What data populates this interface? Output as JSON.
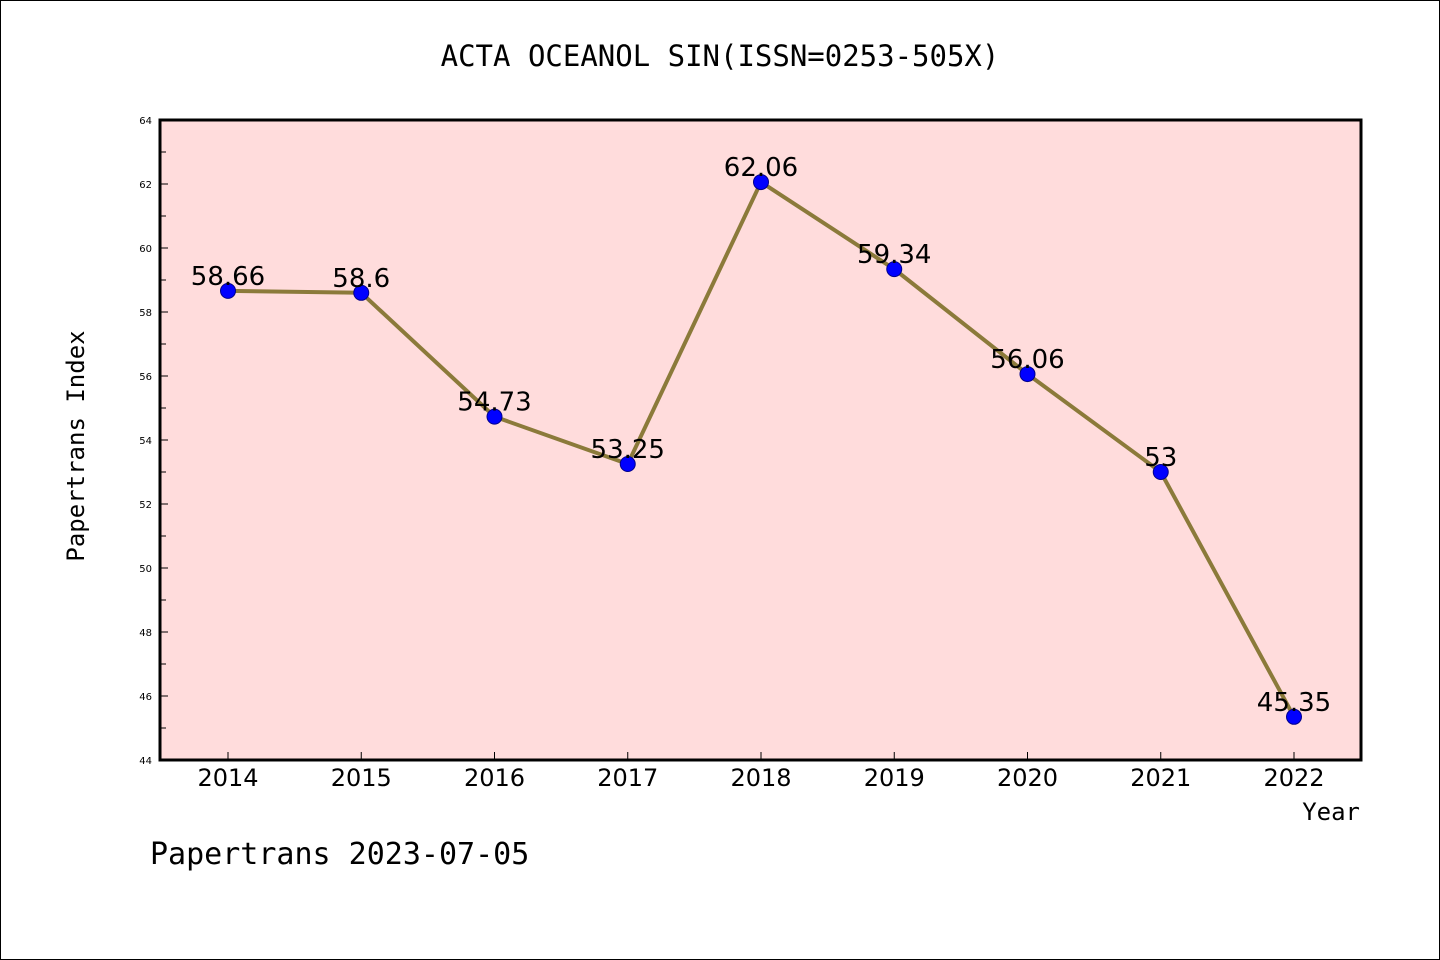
{
  "chart_data": {
    "type": "line",
    "title": "ACTA OCEANOL SIN(ISSN=0253-505X)",
    "xlabel": "Year",
    "ylabel": "Papertrans Index",
    "footer": "Papertrans 2023-07-05",
    "categories": [
      "2014",
      "2015",
      "2016",
      "2017",
      "2018",
      "2019",
      "2020",
      "2021",
      "2022"
    ],
    "values": [
      58.66,
      58.6,
      54.73,
      53.25,
      62.06,
      59.34,
      56.06,
      53,
      45.35
    ],
    "data_labels": [
      "58.66",
      "58.6",
      "54.73",
      "53.25",
      "62.06",
      "59.34",
      "56.06",
      "53",
      "45.35"
    ],
    "ylim": [
      44,
      64
    ],
    "yticks": [
      44,
      46,
      48,
      50,
      52,
      54,
      56,
      58,
      60,
      62,
      64
    ],
    "grid": false,
    "colors": {
      "plot_background": "#ffdcdc",
      "line": "#8b7a3a",
      "marker": "#0000ff"
    }
  }
}
